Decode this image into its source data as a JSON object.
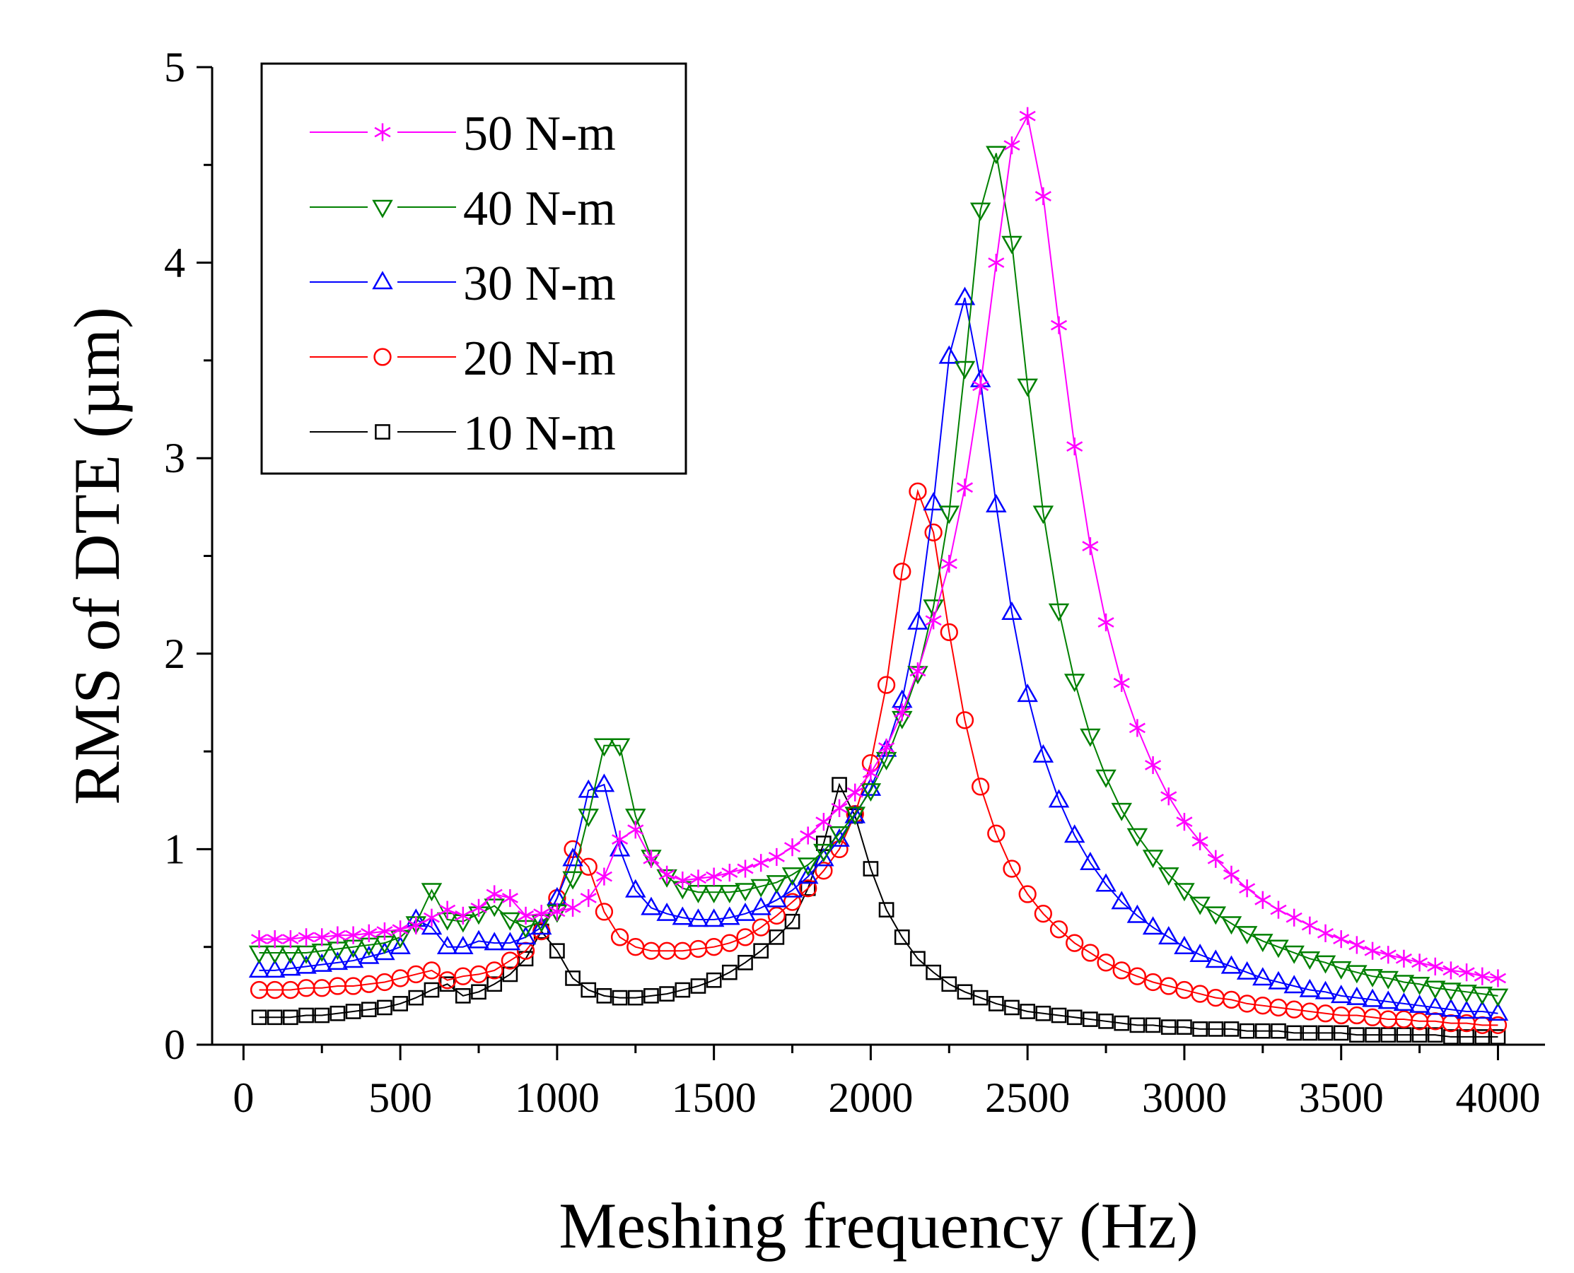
{
  "chart_data": {
    "type": "line",
    "title": "",
    "xlabel": "Meshing frequency (Hz)",
    "ylabel": "RMS of DTE (µm)",
    "xlim": [
      -100,
      4150
    ],
    "ylim": [
      0,
      5
    ],
    "x_ticks": [
      0,
      500,
      1000,
      1500,
      2000,
      2500,
      3000,
      3500,
      4000
    ],
    "y_ticks": [
      0,
      1,
      2,
      3,
      4,
      5
    ],
    "x_tick_labels": [
      "0",
      "500",
      "1000",
      "1500",
      "2000",
      "2500",
      "3000",
      "3500",
      "4000"
    ],
    "y_tick_labels": [
      "0",
      "1",
      "2",
      "3",
      "4",
      "5"
    ],
    "grid": false,
    "legend_position": "top-left",
    "x": [
      50,
      100,
      150,
      200,
      250,
      300,
      350,
      400,
      450,
      500,
      550,
      600,
      650,
      700,
      750,
      800,
      850,
      900,
      950,
      1000,
      1050,
      1100,
      1150,
      1200,
      1250,
      1300,
      1350,
      1400,
      1450,
      1500,
      1550,
      1600,
      1650,
      1700,
      1750,
      1800,
      1850,
      1900,
      1950,
      2000,
      2050,
      2100,
      2150,
      2200,
      2250,
      2300,
      2350,
      2400,
      2450,
      2500,
      2550,
      2600,
      2650,
      2700,
      2750,
      2800,
      2850,
      2900,
      2950,
      3000,
      3050,
      3100,
      3150,
      3200,
      3250,
      3300,
      3350,
      3400,
      3450,
      3500,
      3550,
      3600,
      3650,
      3700,
      3750,
      3800,
      3850,
      3900,
      3950,
      4000
    ],
    "series": [
      {
        "name": "50 N-m",
        "color": "#ff00ff",
        "marker": "asterisk",
        "values": [
          0.54,
          0.54,
          0.54,
          0.55,
          0.55,
          0.56,
          0.56,
          0.57,
          0.58,
          0.59,
          0.61,
          0.65,
          0.69,
          0.66,
          0.7,
          0.77,
          0.75,
          0.66,
          0.67,
          0.68,
          0.7,
          0.75,
          0.86,
          1.05,
          1.1,
          0.95,
          0.87,
          0.84,
          0.85,
          0.86,
          0.88,
          0.9,
          0.93,
          0.96,
          1.01,
          1.07,
          1.14,
          1.21,
          1.29,
          1.39,
          1.52,
          1.7,
          1.91,
          2.17,
          2.46,
          2.85,
          3.37,
          4.0,
          4.6,
          4.75,
          4.34,
          3.68,
          3.06,
          2.55,
          2.16,
          1.85,
          1.62,
          1.43,
          1.27,
          1.14,
          1.04,
          0.95,
          0.87,
          0.8,
          0.74,
          0.69,
          0.65,
          0.61,
          0.57,
          0.54,
          0.51,
          0.48,
          0.46,
          0.44,
          0.42,
          0.4,
          0.38,
          0.37,
          0.35,
          0.34
        ]
      },
      {
        "name": "40 N-m",
        "color": "#008000",
        "marker": "triangle-down",
        "values": [
          0.47,
          0.47,
          0.47,
          0.47,
          0.48,
          0.49,
          0.5,
          0.51,
          0.52,
          0.55,
          0.62,
          0.79,
          0.64,
          0.63,
          0.67,
          0.71,
          0.64,
          0.6,
          0.63,
          0.68,
          0.85,
          1.17,
          1.53,
          1.53,
          1.17,
          0.96,
          0.86,
          0.8,
          0.78,
          0.78,
          0.78,
          0.79,
          0.81,
          0.83,
          0.87,
          0.92,
          0.99,
          1.08,
          1.18,
          1.3,
          1.46,
          1.67,
          1.9,
          2.24,
          2.72,
          3.46,
          4.27,
          4.56,
          4.1,
          3.37,
          2.72,
          2.22,
          1.86,
          1.58,
          1.37,
          1.2,
          1.07,
          0.96,
          0.87,
          0.79,
          0.72,
          0.67,
          0.62,
          0.57,
          0.53,
          0.5,
          0.47,
          0.44,
          0.42,
          0.39,
          0.37,
          0.35,
          0.34,
          0.32,
          0.31,
          0.29,
          0.28,
          0.27,
          0.26,
          0.25
        ]
      },
      {
        "name": "30 N-m",
        "color": "#0000ff",
        "marker": "triangle-up",
        "values": [
          0.38,
          0.38,
          0.39,
          0.4,
          0.41,
          0.42,
          0.43,
          0.45,
          0.47,
          0.5,
          0.64,
          0.6,
          0.5,
          0.5,
          0.53,
          0.52,
          0.52,
          0.55,
          0.6,
          0.75,
          0.95,
          1.3,
          1.33,
          1.0,
          0.79,
          0.7,
          0.67,
          0.65,
          0.64,
          0.64,
          0.65,
          0.67,
          0.7,
          0.74,
          0.79,
          0.86,
          0.95,
          1.05,
          1.17,
          1.31,
          1.51,
          1.76,
          2.16,
          2.77,
          3.52,
          3.82,
          3.4,
          2.76,
          2.21,
          1.79,
          1.48,
          1.25,
          1.07,
          0.93,
          0.82,
          0.73,
          0.66,
          0.6,
          0.55,
          0.5,
          0.46,
          0.43,
          0.4,
          0.37,
          0.34,
          0.32,
          0.3,
          0.28,
          0.27,
          0.25,
          0.24,
          0.23,
          0.22,
          0.21,
          0.2,
          0.19,
          0.18,
          0.17,
          0.17,
          0.16
        ]
      },
      {
        "name": "20 N-m",
        "color": "#ff0000",
        "marker": "circle",
        "values": [
          0.28,
          0.28,
          0.28,
          0.29,
          0.29,
          0.3,
          0.3,
          0.31,
          0.32,
          0.34,
          0.36,
          0.38,
          0.33,
          0.35,
          0.36,
          0.38,
          0.43,
          0.48,
          0.58,
          0.75,
          1.0,
          0.91,
          0.68,
          0.55,
          0.5,
          0.48,
          0.48,
          0.48,
          0.49,
          0.5,
          0.52,
          0.55,
          0.6,
          0.66,
          0.73,
          0.8,
          0.89,
          1.0,
          1.18,
          1.44,
          1.84,
          2.42,
          2.83,
          2.62,
          2.11,
          1.66,
          1.32,
          1.08,
          0.9,
          0.77,
          0.67,
          0.59,
          0.52,
          0.47,
          0.42,
          0.38,
          0.35,
          0.32,
          0.3,
          0.28,
          0.26,
          0.24,
          0.23,
          0.21,
          0.2,
          0.19,
          0.18,
          0.17,
          0.16,
          0.15,
          0.15,
          0.14,
          0.13,
          0.13,
          0.12,
          0.12,
          0.11,
          0.11,
          0.1,
          0.1
        ]
      },
      {
        "name": "10 N-m",
        "color": "#000000",
        "marker": "square",
        "values": [
          0.14,
          0.14,
          0.14,
          0.15,
          0.15,
          0.16,
          0.17,
          0.18,
          0.19,
          0.21,
          0.24,
          0.28,
          0.31,
          0.25,
          0.27,
          0.31,
          0.36,
          0.44,
          0.58,
          0.48,
          0.34,
          0.28,
          0.25,
          0.24,
          0.24,
          0.25,
          0.26,
          0.28,
          0.3,
          0.33,
          0.37,
          0.42,
          0.48,
          0.55,
          0.63,
          0.8,
          1.03,
          1.33,
          1.17,
          0.9,
          0.69,
          0.55,
          0.44,
          0.37,
          0.31,
          0.27,
          0.24,
          0.21,
          0.19,
          0.17,
          0.16,
          0.15,
          0.14,
          0.13,
          0.12,
          0.11,
          0.1,
          0.1,
          0.09,
          0.09,
          0.08,
          0.08,
          0.08,
          0.07,
          0.07,
          0.07,
          0.06,
          0.06,
          0.06,
          0.06,
          0.05,
          0.05,
          0.05,
          0.05,
          0.05,
          0.05,
          0.04,
          0.04,
          0.04,
          0.04
        ]
      }
    ]
  }
}
